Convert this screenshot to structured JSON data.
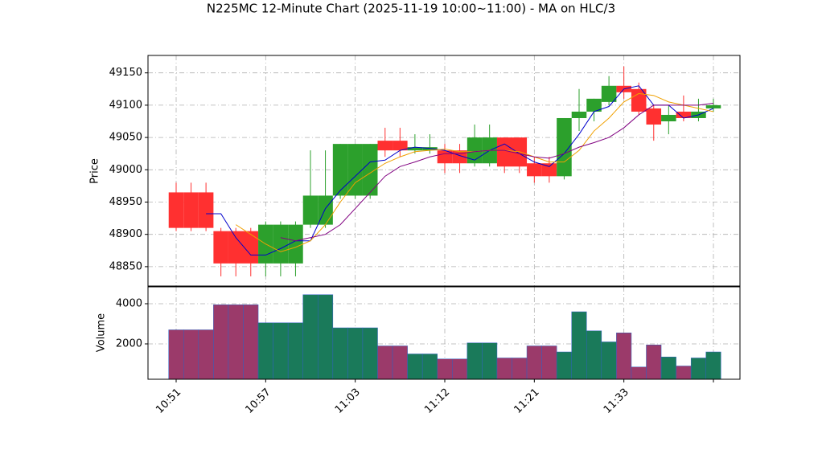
{
  "chart_data": {
    "type": "candlestick",
    "title": "N225MC 12-Minute Chart (2025-11-19 10:00~11:00) - MA on HLC/3",
    "ylabel": "Price",
    "volume_label": "Volume",
    "categories": [
      "10:51",
      null,
      null,
      null,
      null,
      null,
      "10:57",
      null,
      null,
      null,
      null,
      null,
      "11:03",
      null,
      null,
      null,
      null,
      null,
      "11:12",
      null,
      null,
      null,
      null,
      null,
      "11:21",
      null,
      null,
      null,
      null,
      null,
      "11:33",
      null,
      null,
      null,
      null,
      null,
      null
    ],
    "xticks": [
      0,
      6,
      12,
      18,
      24,
      30,
      36
    ],
    "open": [
      48965,
      48965,
      48965,
      48905,
      48905,
      48905,
      48855,
      48855,
      48855,
      48915,
      48915,
      48960,
      48960,
      48960,
      49045,
      49045,
      49030,
      49030,
      49030,
      49030,
      49010,
      49010,
      49050,
      49050,
      49010,
      49010,
      48990,
      49080,
      49090,
      49105,
      49130,
      49125,
      49095,
      49075,
      49090,
      49080,
      49095
    ],
    "high": [
      48980,
      48980,
      48980,
      48910,
      48910,
      48910,
      48920,
      48920,
      48920,
      49030,
      49030,
      49040,
      49040,
      49040,
      49065,
      49065,
      49055,
      49055,
      49040,
      49040,
      49070,
      49070,
      49050,
      49050,
      49020,
      49020,
      49080,
      49125,
      49110,
      49145,
      49160,
      49135,
      49100,
      49100,
      49115,
      49110,
      49110
    ],
    "low": [
      48905,
      48905,
      48905,
      48835,
      48835,
      48835,
      48835,
      48835,
      48835,
      48910,
      48910,
      48955,
      48955,
      48955,
      49020,
      49020,
      49025,
      49025,
      48995,
      48995,
      49005,
      49005,
      48995,
      48995,
      48980,
      48980,
      48985,
      49060,
      49075,
      49100,
      49110,
      49085,
      49045,
      49055,
      49075,
      49075,
      49090
    ],
    "close": [
      48910,
      48910,
      48910,
      48855,
      48855,
      48855,
      48915,
      48915,
      48915,
      48960,
      48960,
      49040,
      49040,
      49040,
      49030,
      49030,
      49035,
      49035,
      49010,
      49010,
      49050,
      49050,
      49005,
      49005,
      48990,
      48990,
      49080,
      49090,
      49110,
      49130,
      49120,
      49090,
      49070,
      49085,
      49080,
      49090,
      49100
    ],
    "volume": [
      2700,
      2700,
      2700,
      3950,
      3950,
      3950,
      3050,
      3050,
      3050,
      4450,
      4450,
      2800,
      2800,
      2800,
      1900,
      1900,
      1500,
      1500,
      1250,
      1250,
      2050,
      2050,
      1300,
      1300,
      1900,
      1900,
      1600,
      3600,
      2650,
      2100,
      2550,
      850,
      1950,
      1350,
      900,
      1300,
      1600
    ],
    "up_color": "#2ca02c",
    "down_color": "#ff3030",
    "volume_up_color": "#1a7a5a",
    "volume_down_color": "#9b3a6a",
    "ylim": [
      48820,
      49177
    ],
    "yticks": [
      48850,
      48900,
      48950,
      49000,
      49050,
      49100,
      49150
    ],
    "volume_ylim": [
      240,
      4840
    ],
    "volume_yticks": [
      2000,
      4000
    ],
    "grid": true,
    "series": [
      {
        "color": "#0000cc",
        "values": [
          null,
          null,
          48932,
          48932,
          48895,
          48868,
          48868,
          48878,
          48890,
          48890,
          48940,
          48968,
          48990,
          49012,
          49015,
          49030,
          49035,
          49033,
          49030,
          49022,
          49015,
          49030,
          49040,
          49025,
          49012,
          49005,
          49025,
          49055,
          49090,
          49098,
          49125,
          49130,
          49100,
          49100,
          49080,
          49085,
          49095
        ]
      },
      {
        "color": "#f0a000",
        "values": [
          null,
          null,
          null,
          null,
          48915,
          48900,
          48885,
          48873,
          48880,
          48890,
          48915,
          48950,
          48980,
          48995,
          49010,
          49020,
          49028,
          49030,
          49032,
          49028,
          49028,
          49030,
          49030,
          49028,
          49020,
          49012,
          49012,
          49030,
          49060,
          49080,
          49105,
          49118,
          49115,
          49105,
          49100,
          49095,
          49090
        ]
      },
      {
        "color": "#800080",
        "values": [
          null,
          null,
          null,
          null,
          null,
          null,
          null,
          48895,
          48890,
          48895,
          48900,
          48915,
          48940,
          48965,
          48990,
          49005,
          49012,
          49020,
          49025,
          49025,
          49028,
          49030,
          49030,
          49025,
          49020,
          49018,
          49025,
          49035,
          49042,
          49050,
          49065,
          49085,
          49100,
          49100,
          49100,
          49100,
          49103
        ]
      }
    ]
  }
}
